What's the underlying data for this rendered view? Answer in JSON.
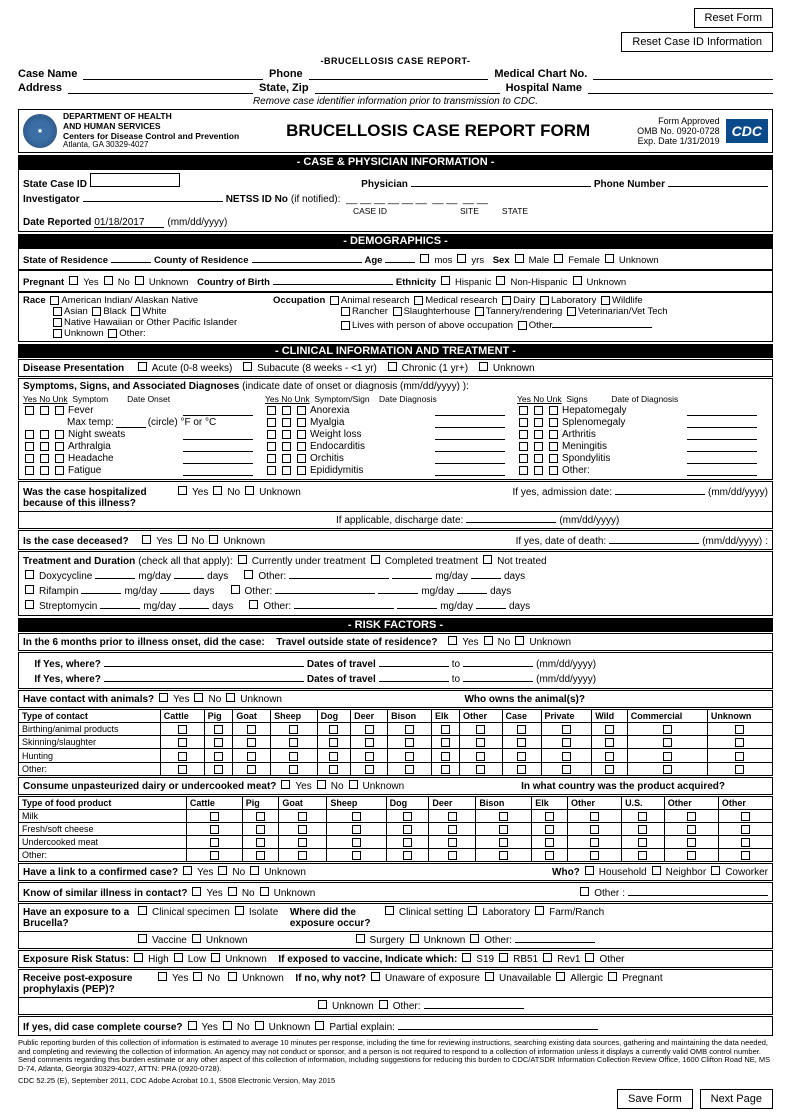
{
  "buttons": {
    "reset_form": "Reset Form",
    "reset_case": "Reset Case ID Information",
    "save": "Save Form",
    "next": "Next Page"
  },
  "hdr_small": "-BRUCELLOSIS CASE REPORT-",
  "ids": {
    "case_name": "Case Name",
    "phone": "Phone",
    "medchart": "Medical Chart No.",
    "address": "Address",
    "statezip": "State, Zip",
    "hospital": "Hospital Name"
  },
  "note": "Remove case identifier information prior to transmission to CDC.",
  "org": {
    "l1": "DEPARTMENT OF HEALTH",
    "l2": "AND HUMAN SERVICES",
    "l3": "Centers for Disease Control and Prevention",
    "l4": "Atlanta, GA 30329-4027"
  },
  "main_title": "BRUCELLOSIS CASE REPORT FORM",
  "approval": {
    "l1": "Form Approved",
    "l2": "OMB No. 0920-0728",
    "l3": "Exp. Date 1/31/2019",
    "badge": "CDC"
  },
  "sec": {
    "case_phys": "- CASE & PHYSICIAN INFORMATION -",
    "demo": "- DEMOGRAPHICS -",
    "clin": "- CLINICAL INFORMATION AND TREATMENT -",
    "risk": "- RISK FACTORS -"
  },
  "case_phys": {
    "state_case": "State Case ID",
    "physician": "Physician",
    "phone": "Phone Number",
    "investigator": "Investigator",
    "netss": "NETSS ID No",
    "netss_note": "(if notified):",
    "caseid": "CASE ID",
    "site": "SITE",
    "state": "STATE",
    "date_rep": "Date Reported",
    "date_val": "01/18/2017",
    "date_fmt": "(mm/dd/yyyy)"
  },
  "demo": {
    "stateres": "State of Residence",
    "county": "County of Residence",
    "age": "Age",
    "mos": "mos",
    "yrs": "yrs",
    "sex": "Sex",
    "male": "Male",
    "female": "Female",
    "unknown": "Unknown",
    "pregnant": "Pregnant",
    "yes": "Yes",
    "no": "No",
    "country": "Country of Birth",
    "ethnicity": "Ethnicity",
    "hispanic": "Hispanic",
    "nonhisp": "Non-Hispanic",
    "race": "Race",
    "race_opts": [
      "American Indian/ Alaskan Native",
      "Asian",
      "Black",
      "White",
      "Native Hawaiian or Other Pacific Islander",
      "Unknown",
      "Other:"
    ],
    "occupation": "Occupation",
    "occ_opts": [
      "Animal research",
      "Medical research",
      "Dairy",
      "Laboratory",
      "Wildlife",
      "Rancher",
      "Slaughterhouse",
      "Tannery/rendering",
      "Veterinarian/Vet Tech",
      "Lives with person of above occupation",
      "Other"
    ]
  },
  "clin": {
    "disease": "Disease Presentation",
    "acute": "Acute (0-8 weeks)",
    "subacute": "Subacute (8 weeks - <1 yr)",
    "chronic": "Chronic (1 yr+)",
    "unknown": "Unknown",
    "sym_hdr": "Symptoms, Signs, and Associated Diagnoses",
    "sym_note": "(indicate date of onset or diagnosis  (mm/dd/yyyy) ):",
    "yesnounk": "Yes No Unk",
    "symptom": "Symptom",
    "dateonset": "Date Onset",
    "symsign": "Symptom/Sign",
    "datediag": "Date Diagnosis",
    "signs": "Signs",
    "dateofdiag": "Date of Diagnosis",
    "col1": [
      "Fever",
      "Max temp:",
      "Night sweats",
      "Arthralgia",
      "Headache",
      "Fatigue"
    ],
    "maxtemp_note": "(circle) °F or °C",
    "col2": [
      "Anorexia",
      "Myalgia",
      "Weight loss",
      "Endocarditis",
      "Orchitis",
      "Epididymitis"
    ],
    "col3": [
      "Hepatomegaly",
      "Splenomegaly",
      "Arthritis",
      "Meningitis",
      "Spondylitis",
      "Other:"
    ],
    "hosp": "Was the case hospitalized because of this illness?",
    "adm": "If yes, admission date:",
    "disch": "If applicable, discharge date:",
    "mmdd": "(mm/dd/yyyy)",
    "deceased": "Is the case deceased?",
    "death": "If yes, date of death:",
    "treat": "Treatment and Duration",
    "treat_note": "(check all that apply):",
    "cur": "Currently under treatment",
    "comp": "Completed treatment",
    "nottreat": "Not treated",
    "drugs": [
      "Doxycycline",
      "Rifampin",
      "Streptomycin"
    ],
    "other": "Other:",
    "mgday": "mg/day",
    "days": "days"
  },
  "risk": {
    "six": "In the 6 months prior to illness onset, did the case:",
    "travel": "Travel outside state of residence?",
    "yes": "Yes",
    "no": "No",
    "unknown": "Unknown",
    "ifyes": "If Yes, where?",
    "dates": "Dates of travel",
    "to": "to",
    "mmdd": "(mm/dd/yyyy)",
    "contact": "Have contact with animals?",
    "who_owns": "Who owns the animal(s)?",
    "type_contact": "Type of contact",
    "animals": [
      "Cattle",
      "Pig",
      "Goat",
      "Sheep",
      "Dog",
      "Deer",
      "Bison",
      "Elk",
      "Other"
    ],
    "owners": [
      "Case",
      "Private",
      "Wild",
      "Commercial",
      "Unknown"
    ],
    "contacts": [
      "Birthing/animal products",
      "Skinning/slaughter",
      "Hunting",
      "Other:"
    ],
    "consume": "Consume unpasteurized dairy or undercooked meat?",
    "country_prod": "In what country was the product acquired?",
    "type_food": "Type of food product",
    "us": "U.S.",
    "other": "Other",
    "foods": [
      "Milk",
      "Fresh/soft cheese",
      "Undercooked meat",
      "Other:"
    ],
    "link": "Have a link to a confirmed case?",
    "similar": "Know of similar illness in contact?",
    "who": "Who?",
    "household": "Household",
    "neighbor": "Neighbor",
    "coworker": "Coworker",
    "exposure": "Have an exposure to a Brucella?",
    "exp_opts": [
      "Clinical specimen",
      "Isolate",
      "Vaccine",
      "Unknown"
    ],
    "where": "Where did the exposure occur?",
    "where_opts": [
      "Clinical setting",
      "Laboratory",
      "Farm/Ranch",
      "Surgery",
      "Unknown",
      "Other:"
    ],
    "ers": "Exposure Risk Status:",
    "ers_opts": [
      "High",
      "Low",
      "Unknown"
    ],
    "ifvac": "If exposed to vaccine, Indicate which:",
    "vac_opts": [
      "S19",
      "RB51",
      "Rev1",
      "Other"
    ],
    "pep": "Receive post-exposure prophylaxis (PEP)?",
    "ifnowhy": "If no, why not?",
    "why_opts": [
      "Unaware of exposure",
      "Unavailable",
      "Allergic",
      "Pregnant",
      "Unknown",
      "Other:"
    ],
    "complete": "If yes, did case complete course?",
    "partial": "Partial explain:"
  },
  "foot": "Public reporting burden of this collection of information is estimated to average 10 minutes per response, including the time for reviewing instructions, searching existing data sources, gathering and maintaining the data needed, and completing and reviewing the collection of information. An agency may not conduct or sponsor, and a person is not required to respond to a collection of information unless it displays a currently valid OMB control number. Send comments regarding this burden estimate or any other aspect of this collection of information, including suggestions for reducing this burden to CDC/ATSDR Information Collection Review Office, 1600 Clifton Road NE, MS D-74, Atlanta, Georgia 30329-4027, ATTN: PRA (0920-0728).",
  "foot2": "CDC 52.25 (E), September 2011, CDC Adobe Acrobat 10.1, S508 Electronic Version, May 2015"
}
